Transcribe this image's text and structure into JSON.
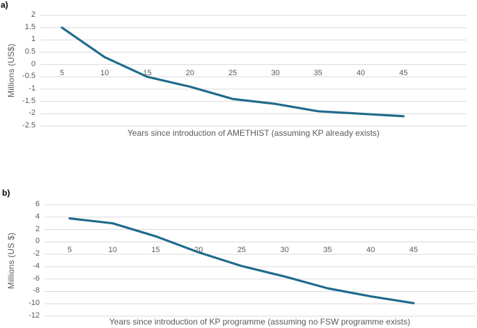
{
  "figure": {
    "colors": {
      "background": "#ffffff",
      "line": "#1f6b8c",
      "gridline": "#d9d9d9",
      "tick_text": "#595959",
      "axis_title_text": "#595959",
      "panel_label_text": "#000000"
    }
  },
  "chart_data": [
    {
      "type": "line",
      "panel_label": "a)",
      "title": "",
      "xlabel": "Years since introduction of AMETHIST (assuming KP already exists)",
      "ylabel": "Millions (US$)",
      "x": [
        5,
        10,
        15,
        20,
        25,
        30,
        35,
        40,
        45
      ],
      "values": [
        1.5,
        0.3,
        -0.5,
        -0.9,
        -1.4,
        -1.6,
        -1.9,
        -2.0,
        -2.1
      ],
      "xticks": [
        5,
        10,
        15,
        20,
        25,
        30,
        35,
        40,
        45
      ],
      "yticks": [
        2,
        1.5,
        1,
        0.5,
        0,
        -0.5,
        -1,
        -1.5,
        -2,
        -2.5
      ],
      "ylim": [
        -2.5,
        2
      ],
      "grid": true,
      "legend": false,
      "line_color": "#1f6b8c"
    },
    {
      "type": "line",
      "panel_label": "b)",
      "title": "",
      "xlabel": "Years since introduction of KP programme (assuming no FSW programme exists)",
      "ylabel": "Millions (US $)",
      "x": [
        5,
        10,
        15,
        20,
        25,
        30,
        35,
        40,
        45
      ],
      "values": [
        3.8,
        3.0,
        0.9,
        -1.7,
        -3.9,
        -5.6,
        -7.5,
        -8.8,
        -9.9
      ],
      "xticks": [
        5,
        10,
        15,
        20,
        25,
        30,
        35,
        40,
        45
      ],
      "yticks": [
        6,
        4,
        2,
        0,
        -2,
        -4,
        -6,
        -8,
        -10,
        -12
      ],
      "ylim": [
        -12,
        6
      ],
      "grid": true,
      "legend": false,
      "line_color": "#1f6b8c"
    }
  ]
}
